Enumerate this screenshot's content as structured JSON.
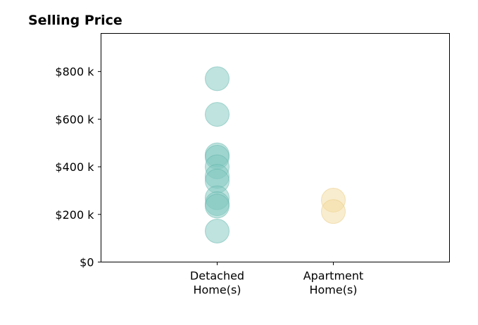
{
  "chart_data": {
    "type": "scatter",
    "title": "Selling Price",
    "xlabel": "",
    "ylabel": "",
    "categories": [
      [
        "Detached",
        "Home(s)"
      ],
      [
        "Apartment",
        "Home(s)"
      ]
    ],
    "xlim": [
      0,
      3
    ],
    "ylim": [
      0,
      960000
    ],
    "y_ticks": [
      0,
      200000,
      400000,
      600000,
      800000
    ],
    "y_tick_labels": [
      "$0",
      "$200 k",
      "$400 k",
      "$600 k",
      "$800 k"
    ],
    "grid": false,
    "legend": "none",
    "series": [
      {
        "category_index": 0,
        "color": "#80c7c0",
        "edge_color": "#5fb3aa",
        "alpha": 0.5,
        "values": [
          770000,
          620000,
          450000,
          440000,
          400000,
          360000,
          340000,
          270000,
          245000,
          235000,
          130000
        ]
      },
      {
        "category_index": 1,
        "color": "#f4dca0",
        "edge_color": "#e8c97c",
        "alpha": 0.5,
        "values": [
          260000,
          212000
        ]
      }
    ]
  }
}
